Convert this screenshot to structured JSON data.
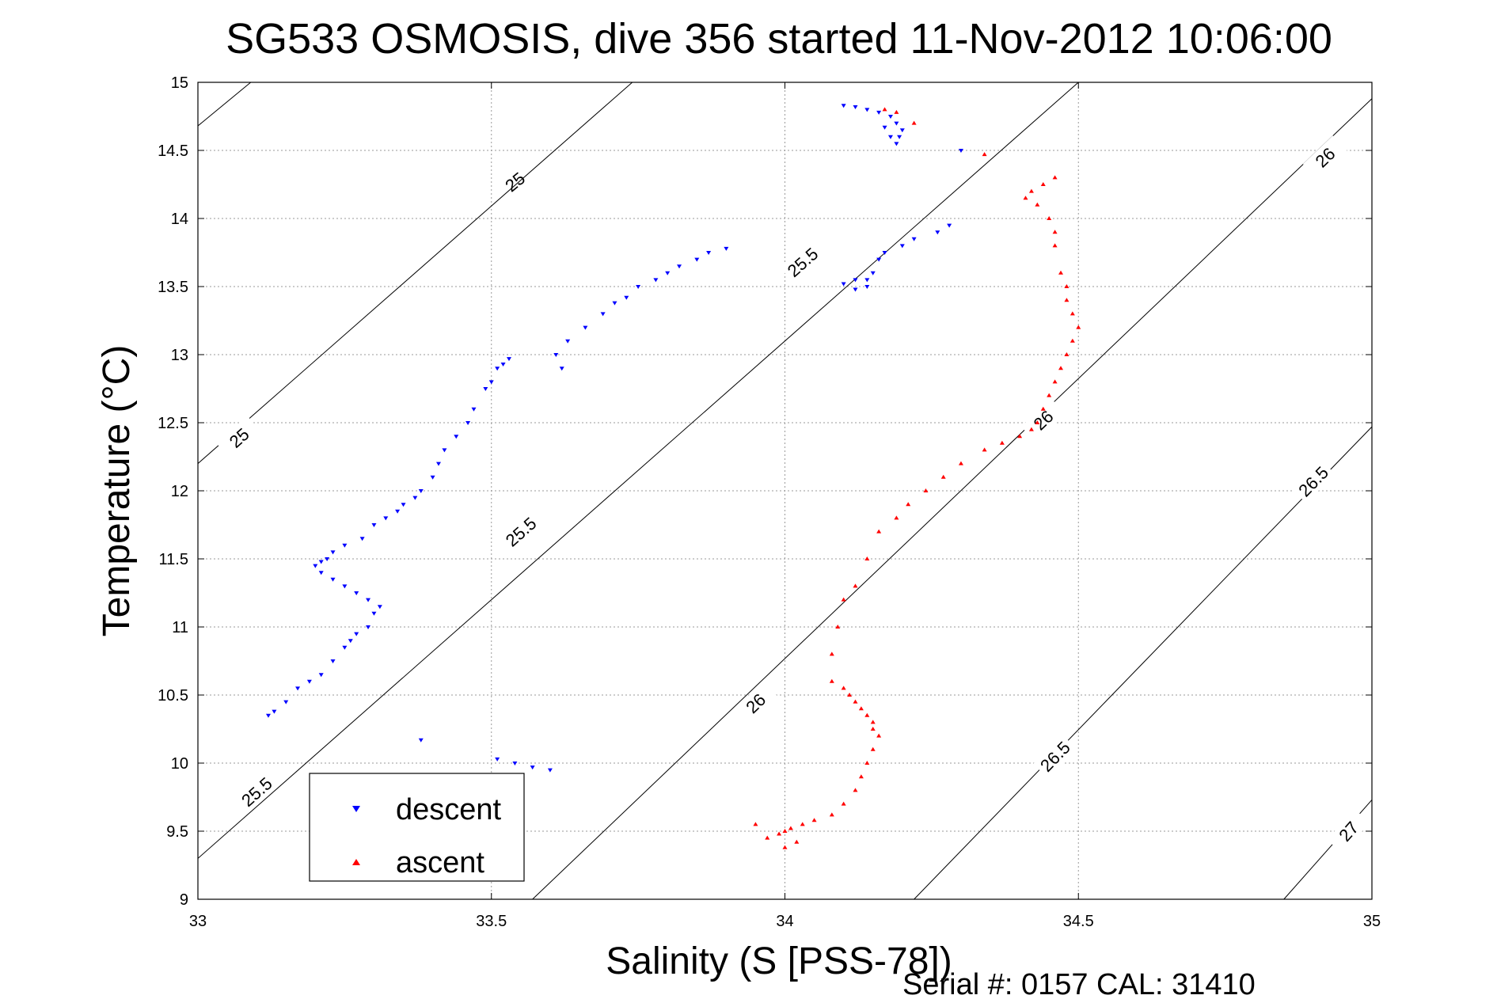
{
  "chart_data": {
    "type": "scatter",
    "title": "SG533 OSMOSIS, dive 356 started 11-Nov-2012 10:06:00",
    "xlabel": "Salinity (S [PSS-78])",
    "ylabel": "Temperature (°C)",
    "xlim": [
      33,
      35
    ],
    "ylim": [
      9,
      15
    ],
    "xticks": [
      33,
      33.5,
      34,
      34.5,
      35
    ],
    "xtick_labels": [
      "33",
      "33.5",
      "34",
      "34.5",
      "35"
    ],
    "yticks": [
      9,
      9.5,
      10,
      10.5,
      11,
      11.5,
      12,
      12.5,
      13,
      13.5,
      14,
      14.5,
      15
    ],
    "ytick_labels": [
      "9",
      "9.5",
      "10",
      "10.5",
      "11",
      "11.5",
      "12",
      "12.5",
      "13",
      "13.5",
      "14",
      "14.5",
      "15"
    ],
    "grid": true,
    "legend": {
      "placement": "bottom-left"
    },
    "footer": "Serial #: 0157  CAL: 31410",
    "contours": [
      {
        "level": "25",
        "points": [
          [
            33,
            14.68
          ],
          [
            33.09,
            15
          ]
        ],
        "labels": [
          [
            33.54,
            14.27
          ]
        ]
      },
      {
        "level": "25",
        "points": [
          [
            33,
            12.2
          ],
          [
            33.74,
            15
          ]
        ],
        "labels": [
          [
            33.07,
            12.39
          ]
        ]
      },
      {
        "level": "25.5",
        "points": [
          [
            33,
            9.3
          ],
          [
            34.5,
            15
          ]
        ],
        "labels": [
          [
            33.1,
            9.79
          ],
          [
            33.55,
            11.7
          ],
          [
            34.03,
            13.68
          ]
        ]
      },
      {
        "level": "26",
        "points": [
          [
            33.57,
            9
          ],
          [
            35,
            14.88
          ]
        ],
        "labels": [
          [
            33.95,
            10.44
          ],
          [
            34.44,
            12.52
          ],
          [
            34.92,
            14.45
          ]
        ]
      },
      {
        "level": "26.5",
        "points": [
          [
            34.22,
            9
          ],
          [
            35,
            12.47
          ]
        ],
        "labels": [
          [
            34.46,
            10.05
          ],
          [
            34.9,
            12.07
          ]
        ]
      },
      {
        "level": "27",
        "points": [
          [
            34.85,
            9
          ],
          [
            35,
            9.73
          ]
        ],
        "labels": [
          [
            34.96,
            9.5
          ]
        ]
      }
    ],
    "series": [
      {
        "name": "descent",
        "color": "#0000ff",
        "marker": "triangle-down",
        "x": [
          34.1,
          34.12,
          34.14,
          34.16,
          34.18,
          34.19,
          34.2,
          34.195,
          34.19,
          34.18,
          34.17,
          34.3,
          34.28,
          34.26,
          34.22,
          34.2,
          34.17,
          34.16,
          34.15,
          34.14,
          34.12,
          34.1,
          34.12,
          34.14,
          33.9,
          33.87,
          33.85,
          33.82,
          33.8,
          33.78,
          33.75,
          33.73,
          33.71,
          33.69,
          33.66,
          33.63,
          33.61,
          33.62,
          33.53,
          33.52,
          33.51,
          33.5,
          33.49,
          33.47,
          33.46,
          33.44,
          33.42,
          33.41,
          33.4,
          33.38,
          33.37,
          33.35,
          33.34,
          33.32,
          33.3,
          33.28,
          33.25,
          33.23,
          33.22,
          33.21,
          33.2,
          33.21,
          33.23,
          33.25,
          33.27,
          33.29,
          33.31,
          33.3,
          33.29,
          33.27,
          33.26,
          33.25,
          33.23,
          33.21,
          33.19,
          33.17,
          33.15,
          33.13,
          33.12,
          33.38,
          33.51,
          33.54,
          33.57,
          33.6
        ],
        "y": [
          14.83,
          14.82,
          14.8,
          14.78,
          14.75,
          14.7,
          14.65,
          14.6,
          14.55,
          14.6,
          14.67,
          14.5,
          13.95,
          13.9,
          13.85,
          13.8,
          13.75,
          13.7,
          13.6,
          13.55,
          13.55,
          13.52,
          13.48,
          13.5,
          13.78,
          13.75,
          13.7,
          13.65,
          13.6,
          13.55,
          13.5,
          13.42,
          13.38,
          13.3,
          13.2,
          13.1,
          13.0,
          12.9,
          12.97,
          12.93,
          12.9,
          12.8,
          12.75,
          12.6,
          12.5,
          12.4,
          12.3,
          12.2,
          12.1,
          12.0,
          11.95,
          11.9,
          11.85,
          11.8,
          11.75,
          11.65,
          11.6,
          11.55,
          11.5,
          11.48,
          11.45,
          11.4,
          11.35,
          11.3,
          11.25,
          11.2,
          11.15,
          11.1,
          11.0,
          10.95,
          10.9,
          10.85,
          10.75,
          10.65,
          10.6,
          10.55,
          10.45,
          10.38,
          10.35,
          10.17,
          10.03,
          10.0,
          9.97,
          9.95
        ]
      },
      {
        "name": "ascent",
        "color": "#ff0000",
        "marker": "triangle-up",
        "x": [
          34.17,
          34.19,
          34.22,
          34.34,
          34.46,
          34.44,
          34.42,
          34.41,
          34.43,
          34.45,
          34.46,
          34.46,
          34.47,
          34.48,
          34.48,
          34.49,
          34.5,
          34.49,
          34.48,
          34.47,
          34.46,
          34.45,
          34.44,
          34.43,
          34.42,
          34.4,
          34.37,
          34.34,
          34.3,
          34.27,
          34.24,
          34.21,
          34.19,
          34.16,
          34.14,
          34.12,
          34.1,
          34.09,
          34.08,
          34.08,
          34.1,
          34.11,
          34.12,
          34.13,
          34.14,
          34.15,
          34.15,
          34.16,
          34.15,
          34.14,
          34.13,
          34.12,
          34.1,
          34.08,
          34.05,
          34.03,
          34.01,
          34.0,
          33.99,
          33.97,
          33.95,
          34.02,
          34.0
        ],
        "y": [
          14.8,
          14.78,
          14.7,
          14.47,
          14.3,
          14.25,
          14.2,
          14.15,
          14.1,
          14.0,
          13.9,
          13.8,
          13.6,
          13.5,
          13.4,
          13.3,
          13.2,
          13.1,
          13.0,
          12.9,
          12.8,
          12.7,
          12.6,
          12.5,
          12.45,
          12.4,
          12.35,
          12.3,
          12.2,
          12.1,
          12.0,
          11.9,
          11.8,
          11.7,
          11.5,
          11.3,
          11.2,
          11.0,
          10.8,
          10.6,
          10.55,
          10.5,
          10.45,
          10.4,
          10.35,
          10.3,
          10.25,
          10.2,
          10.1,
          10.0,
          9.9,
          9.8,
          9.7,
          9.62,
          9.58,
          9.55,
          9.52,
          9.5,
          9.48,
          9.45,
          9.55,
          9.42,
          9.38
        ]
      }
    ]
  }
}
